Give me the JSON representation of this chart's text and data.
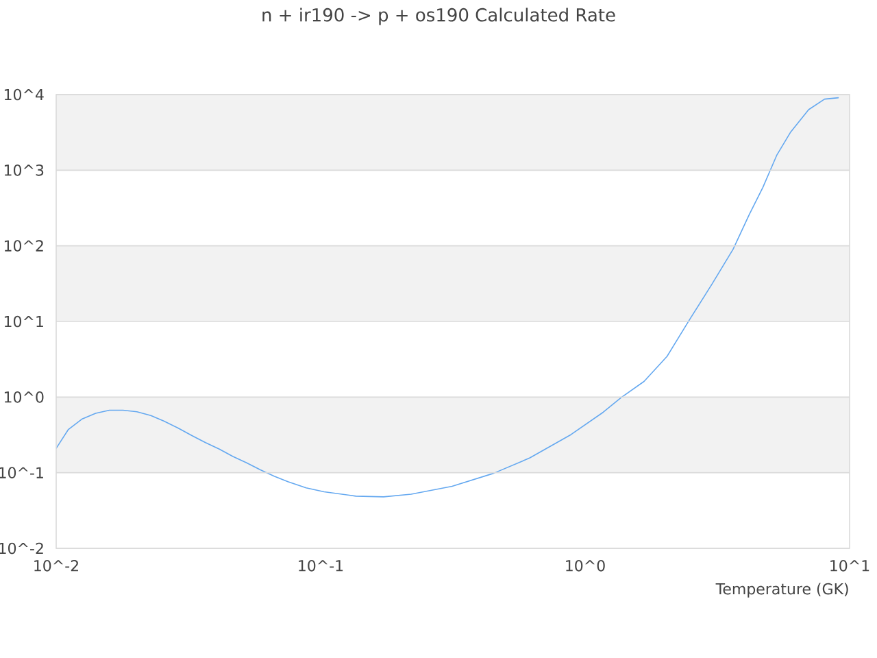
{
  "chart_data": {
    "type": "line",
    "title": "n + ir190 -> p + os190 Calculated Rate",
    "xlabel": "Temperature (GK)",
    "log": "xy",
    "x": [
      0.01,
      0.0111,
      0.0125,
      0.0141,
      0.0159,
      0.0179,
      0.0202,
      0.0228,
      0.0256,
      0.0289,
      0.0326,
      0.0367,
      0.0414,
      0.0466,
      0.0525,
      0.0592,
      0.0667,
      0.0752,
      0.0881,
      0.103,
      0.136,
      0.173,
      0.22,
      0.314,
      0.45,
      0.618,
      0.885,
      1.17,
      1.37,
      1.67,
      2.04,
      2.48,
      3.03,
      3.63,
      4.17,
      4.7,
      5.3,
      5.97,
      7.0,
      8.04,
      9.06
    ],
    "series": [
      {
        "color": "#64a8f0",
        "values": [
          0.21,
          0.37,
          0.51,
          0.61,
          0.67,
          0.67,
          0.64,
          0.57,
          0.48,
          0.39,
          0.31,
          0.25,
          0.205,
          0.164,
          0.135,
          0.109,
          0.09,
          0.076,
          0.063,
          0.056,
          0.049,
          0.048,
          0.052,
          0.066,
          0.098,
          0.157,
          0.32,
          0.63,
          0.99,
          1.61,
          3.45,
          10.5,
          31.9,
          90.6,
          257,
          593,
          1570,
          3150,
          6320,
          8710,
          9080
        ]
      }
    ],
    "xlim": [
      0.01,
      10
    ],
    "ylim": [
      0.01,
      10000
    ],
    "xticks": [
      {
        "value": 0.01,
        "label": "10^-2"
      },
      {
        "value": 0.1,
        "label": "10^-1"
      },
      {
        "value": 1,
        "label": "10^0"
      },
      {
        "value": 10,
        "label": "10^1"
      }
    ],
    "yticks": [
      {
        "value": 0.01,
        "label": "10^-2"
      },
      {
        "value": 0.1,
        "label": "10^-1"
      },
      {
        "value": 1,
        "label": "10^0"
      },
      {
        "value": 10,
        "label": "10^1"
      },
      {
        "value": 100,
        "label": "10^2"
      },
      {
        "value": 1000,
        "label": "10^3"
      },
      {
        "value": 10000,
        "label": "10^4"
      }
    ],
    "grid": "y",
    "line_style": "solid",
    "bands": [
      {
        "axis": "y",
        "from": 0.1,
        "to": 1,
        "color": "#f2f2f2"
      },
      {
        "axis": "y",
        "from": 10,
        "to": 100,
        "color": "#f2f2f2"
      },
      {
        "axis": "y",
        "from": 1000,
        "to": 10000,
        "color": "#f2f2f2"
      }
    ]
  }
}
